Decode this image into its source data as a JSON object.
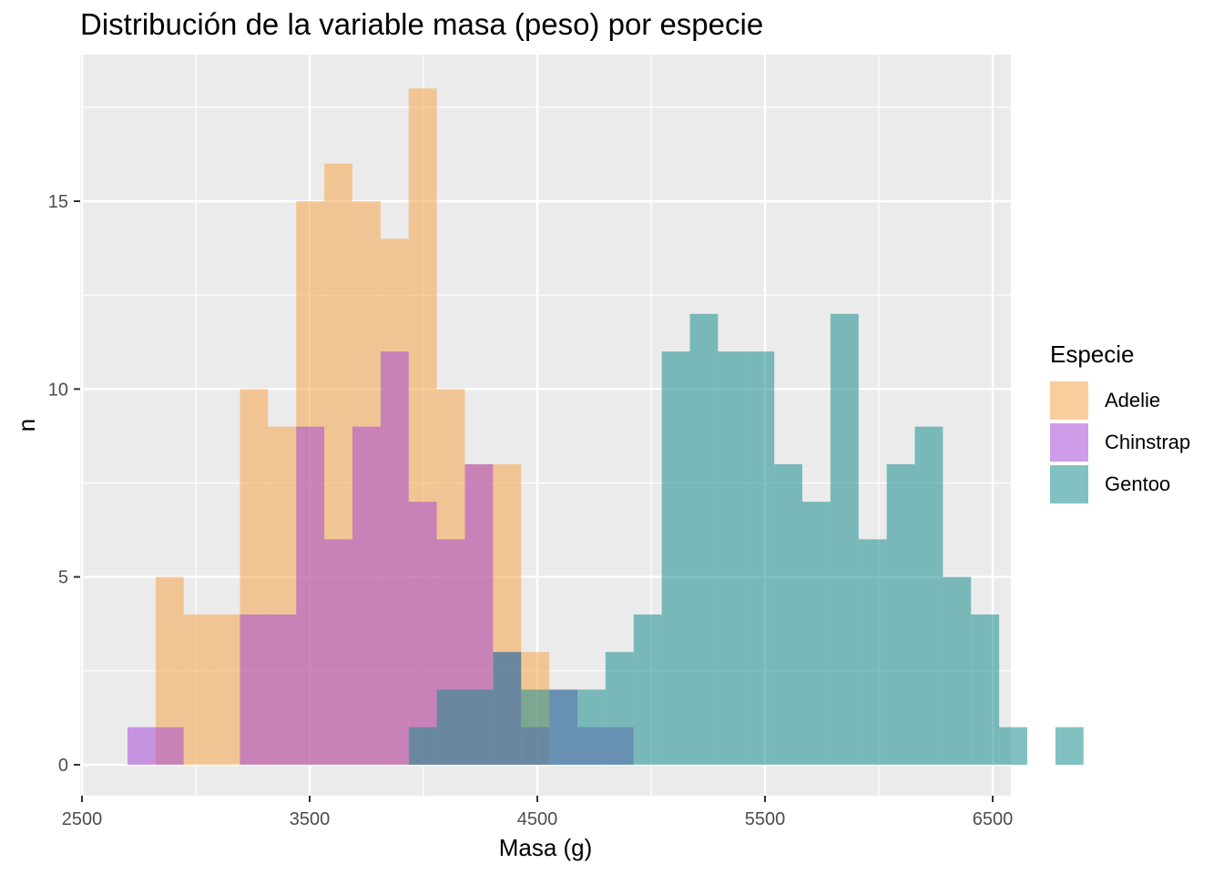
{
  "title": "Distribución de la variable masa (peso) por especie",
  "chart_data": {
    "type": "histogram",
    "xlabel": "Masa (g)",
    "ylabel": "n",
    "xlim": [
      2500,
      6500
    ],
    "ylim": [
      0,
      18
    ],
    "x_ticks": [
      "2500",
      "3500",
      "4500",
      "5500",
      "6500"
    ],
    "y_ticks": [
      "0",
      "5",
      "10",
      "15"
    ],
    "grid": true,
    "legend_position": "right",
    "bin_width": 123.5,
    "bin_start": 2700,
    "legend_title": "Especie",
    "series": [
      {
        "name": "Adelie",
        "color": "#F5A54A",
        "counts": [
          0,
          5,
          4,
          4,
          10,
          9,
          15,
          16,
          15,
          14,
          18,
          10,
          8,
          8,
          3
        ]
      },
      {
        "name": "Chinstrap",
        "color": "#A64BD6",
        "counts": [
          1,
          1,
          0,
          0,
          4,
          4,
          9,
          6,
          9,
          11,
          7,
          6,
          8,
          3,
          1,
          2,
          1,
          1
        ]
      },
      {
        "name": "Gentoo",
        "color": "#1B8E8E",
        "counts": [
          0,
          0,
          0,
          0,
          0,
          0,
          0,
          0,
          0,
          0,
          1,
          2,
          2,
          3,
          2,
          2,
          2,
          3,
          4,
          11,
          12,
          11,
          11,
          8,
          7,
          12,
          6,
          8,
          9,
          5,
          4,
          1,
          0,
          1
        ]
      }
    ]
  }
}
